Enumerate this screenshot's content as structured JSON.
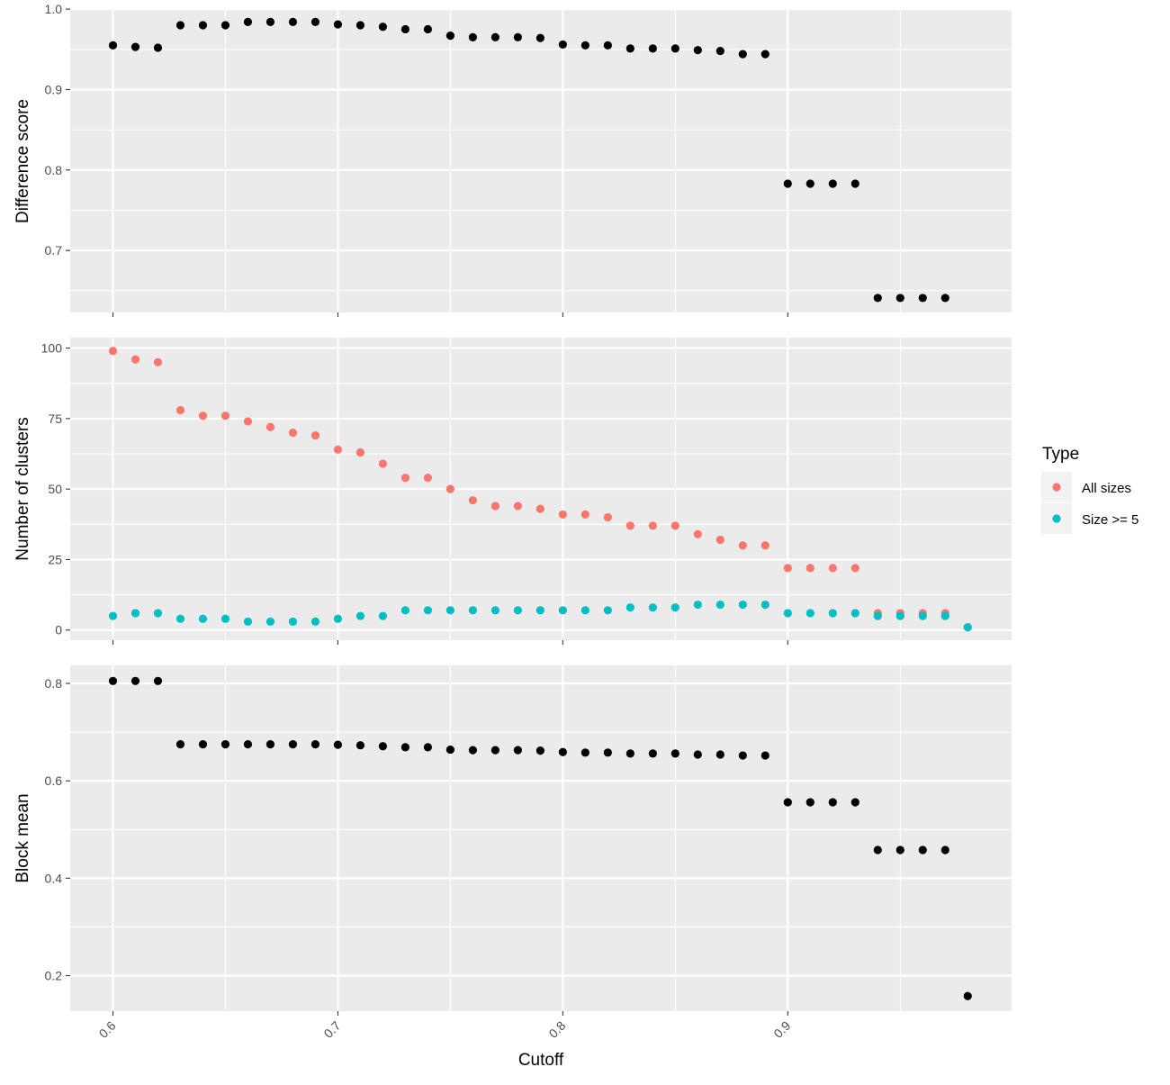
{
  "chart_data": {
    "type": "scatter",
    "xlabel": "Cutoff",
    "xlim": [
      0.581,
      0.9995
    ],
    "xticks": [
      0.6,
      0.7,
      0.8,
      0.9
    ],
    "xtick_labels": [
      "0.6",
      "0.7",
      "0.8",
      "0.9"
    ],
    "grid": true,
    "legend": {
      "title": "Type",
      "position": "right",
      "items": [
        {
          "label": "All sizes",
          "color": "#F8766D"
        },
        {
          "label": "Size >= 5",
          "color": "#00BFC4"
        }
      ]
    },
    "panels": [
      {
        "id": "difference",
        "ylabel": "Difference score",
        "ylim": [
          0.623,
          0.999
        ],
        "yticks": [
          0.7,
          0.8,
          0.9,
          1.0
        ],
        "ytick_labels": [
          "0.7",
          "0.8",
          "0.9",
          "1.0"
        ],
        "series": [
          {
            "color": "#000000",
            "x": [
              0.6,
              0.61,
              0.62,
              0.63,
              0.64,
              0.65,
              0.66,
              0.67,
              0.68,
              0.69,
              0.7,
              0.71,
              0.72,
              0.73,
              0.74,
              0.75,
              0.76,
              0.77,
              0.78,
              0.79,
              0.8,
              0.81,
              0.82,
              0.83,
              0.84,
              0.85,
              0.86,
              0.87,
              0.88,
              0.89,
              0.9,
              0.91,
              0.92,
              0.93,
              0.94,
              0.95,
              0.96,
              0.97
            ],
            "y": [
              0.955,
              0.953,
              0.952,
              0.98,
              0.98,
              0.98,
              0.984,
              0.984,
              0.984,
              0.984,
              0.981,
              0.98,
              0.978,
              0.975,
              0.975,
              0.967,
              0.965,
              0.965,
              0.965,
              0.964,
              0.956,
              0.955,
              0.955,
              0.951,
              0.951,
              0.951,
              0.949,
              0.948,
              0.944,
              0.944,
              0.783,
              0.783,
              0.783,
              0.783,
              0.641,
              0.641,
              0.641,
              0.641
            ]
          }
        ]
      },
      {
        "id": "clusters",
        "ylabel": "Number of clusters",
        "ylim": [
          -3.6,
          103.7
        ],
        "yticks": [
          0,
          25,
          50,
          75,
          100
        ],
        "ytick_labels": [
          "0",
          "25",
          "50",
          "75",
          "100"
        ],
        "series": [
          {
            "name": "All sizes",
            "color": "#F8766D",
            "x": [
              0.6,
              0.61,
              0.62,
              0.63,
              0.64,
              0.65,
              0.66,
              0.67,
              0.68,
              0.69,
              0.7,
              0.71,
              0.72,
              0.73,
              0.74,
              0.75,
              0.76,
              0.77,
              0.78,
              0.79,
              0.8,
              0.81,
              0.82,
              0.83,
              0.84,
              0.85,
              0.86,
              0.87,
              0.88,
              0.89,
              0.9,
              0.91,
              0.92,
              0.93,
              0.94,
              0.95,
              0.96,
              0.97,
              0.98
            ],
            "y": [
              99,
              96,
              95,
              78,
              76,
              76,
              74,
              72,
              70,
              69,
              64,
              63,
              59,
              54,
              54,
              50,
              46,
              44,
              44,
              43,
              41,
              41,
              40,
              37,
              37,
              37,
              34,
              32,
              30,
              30,
              22,
              22,
              22,
              22,
              6,
              6,
              6,
              6,
              1
            ]
          },
          {
            "name": "Size >= 5",
            "color": "#00BFC4",
            "x": [
              0.6,
              0.61,
              0.62,
              0.63,
              0.64,
              0.65,
              0.66,
              0.67,
              0.68,
              0.69,
              0.7,
              0.71,
              0.72,
              0.73,
              0.74,
              0.75,
              0.76,
              0.77,
              0.78,
              0.79,
              0.8,
              0.81,
              0.82,
              0.83,
              0.84,
              0.85,
              0.86,
              0.87,
              0.88,
              0.89,
              0.9,
              0.91,
              0.92,
              0.93,
              0.94,
              0.95,
              0.96,
              0.97,
              0.98
            ],
            "y": [
              5,
              6,
              6,
              4,
              4,
              4,
              3,
              3,
              3,
              3,
              4,
              5,
              5,
              7,
              7,
              7,
              7,
              7,
              7,
              7,
              7,
              7,
              7,
              8,
              8,
              8,
              9,
              9,
              9,
              9,
              6,
              6,
              6,
              6,
              5,
              5,
              5,
              5,
              1
            ]
          }
        ]
      },
      {
        "id": "blockmean",
        "ylabel": "Block mean",
        "ylim": [
          0.127,
          0.837
        ],
        "yticks": [
          0.2,
          0.4,
          0.6,
          0.8
        ],
        "ytick_labels": [
          "0.2",
          "0.4",
          "0.6",
          "0.8"
        ],
        "series": [
          {
            "color": "#000000",
            "x": [
              0.6,
              0.61,
              0.62,
              0.63,
              0.64,
              0.65,
              0.66,
              0.67,
              0.68,
              0.69,
              0.7,
              0.71,
              0.72,
              0.73,
              0.74,
              0.75,
              0.76,
              0.77,
              0.78,
              0.79,
              0.8,
              0.81,
              0.82,
              0.83,
              0.84,
              0.85,
              0.86,
              0.87,
              0.88,
              0.89,
              0.9,
              0.91,
              0.92,
              0.93,
              0.94,
              0.95,
              0.96,
              0.97,
              0.98
            ],
            "y": [
              0.805,
              0.805,
              0.805,
              0.675,
              0.675,
              0.675,
              0.675,
              0.675,
              0.675,
              0.675,
              0.674,
              0.673,
              0.671,
              0.669,
              0.669,
              0.664,
              0.663,
              0.663,
              0.663,
              0.662,
              0.659,
              0.658,
              0.658,
              0.656,
              0.656,
              0.656,
              0.654,
              0.654,
              0.652,
              0.652,
              0.556,
              0.556,
              0.556,
              0.556,
              0.458,
              0.458,
              0.458,
              0.458,
              0.158
            ]
          }
        ]
      }
    ]
  }
}
